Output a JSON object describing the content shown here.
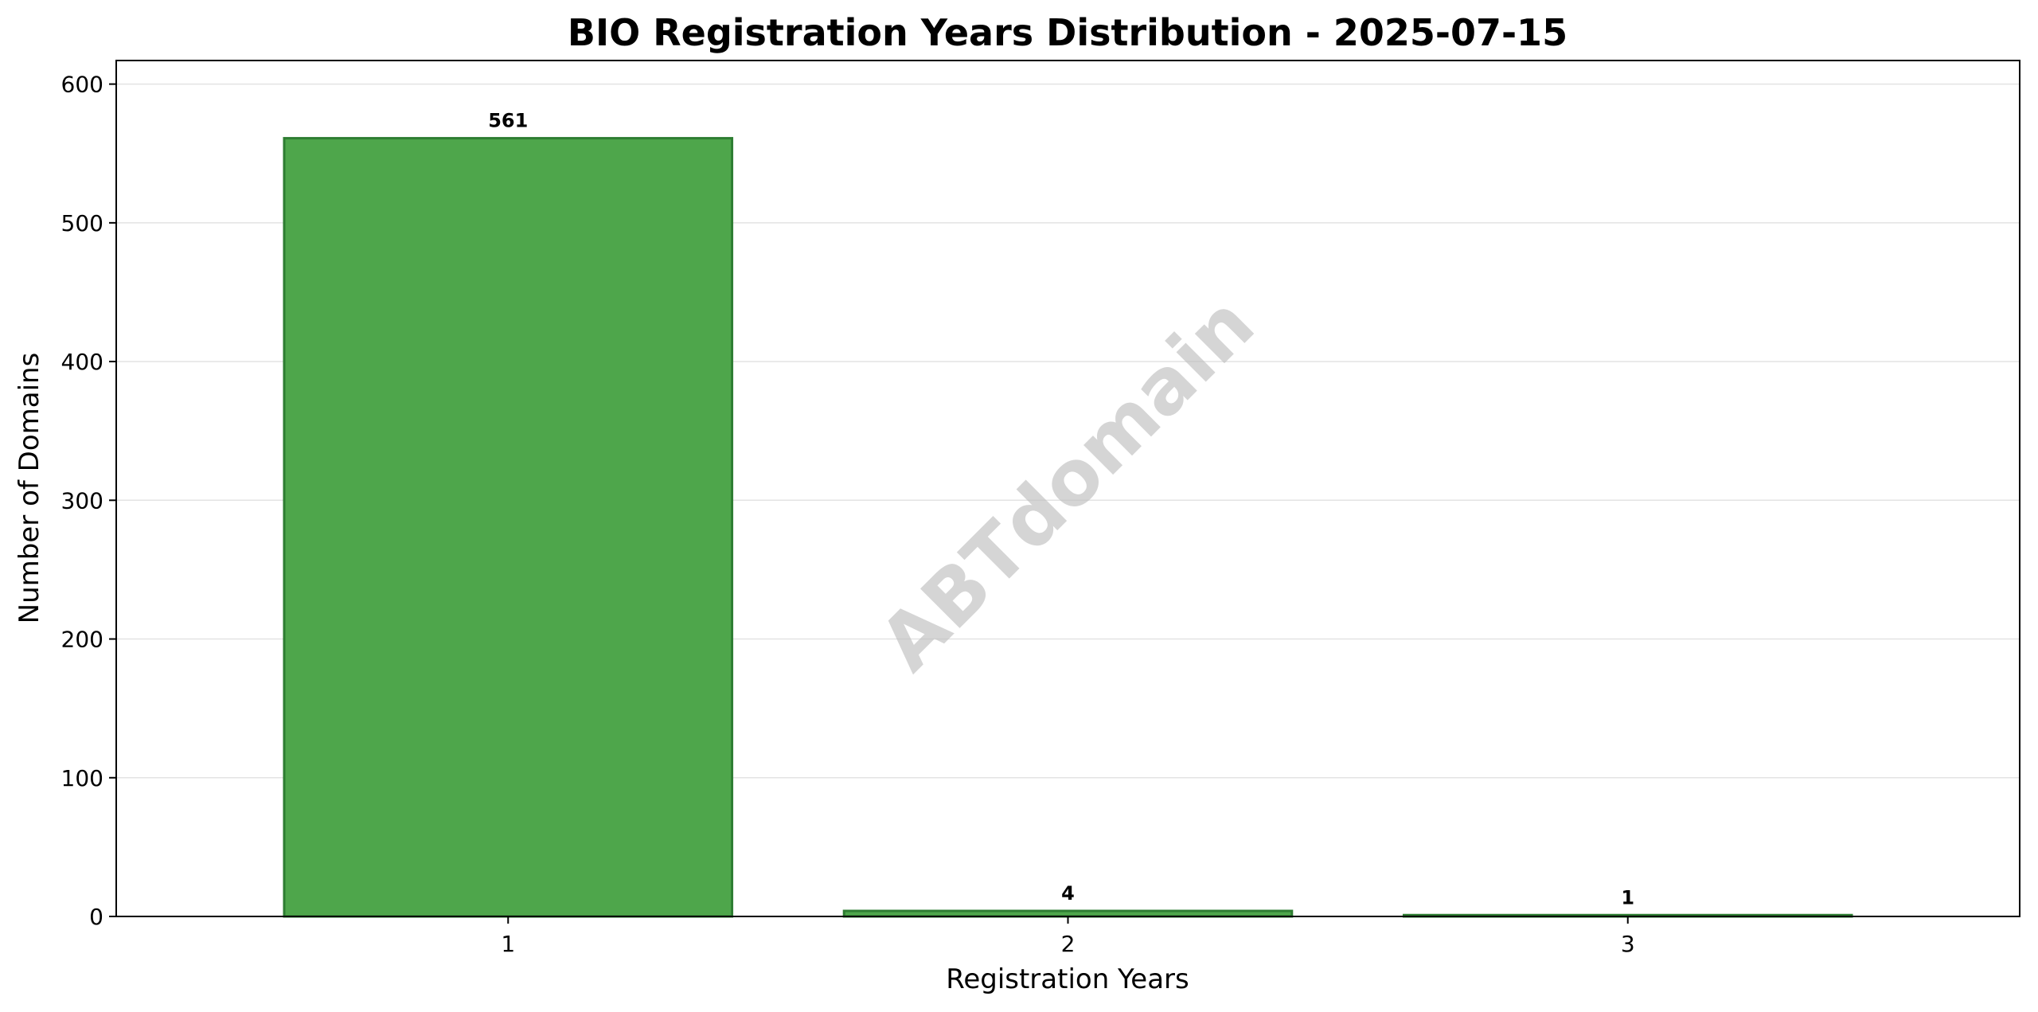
{
  "chart_data": {
    "type": "bar",
    "title": "BIO Registration Years Distribution - 2025-07-15",
    "xlabel": "Registration Years",
    "ylabel": "Number of Domains",
    "categories": [
      "1",
      "2",
      "3"
    ],
    "values": [
      561,
      4,
      1
    ],
    "data_labels": [
      "561",
      "4",
      "1"
    ],
    "ylim": [
      0,
      617
    ],
    "yticks": [
      0,
      100,
      200,
      300,
      400,
      500,
      600
    ],
    "grid": "horizontal",
    "legend": "none",
    "bar_color": "#4ea64b",
    "bar_edge_color": "#2e7d32"
  },
  "watermark": "ABTdomain"
}
